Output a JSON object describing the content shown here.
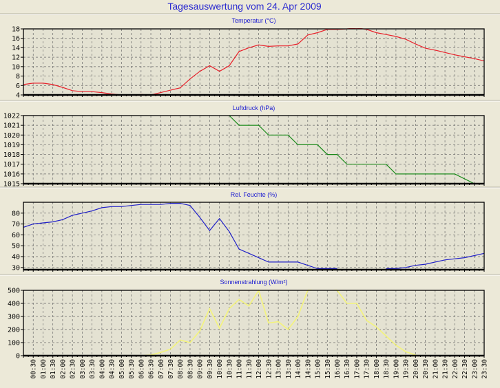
{
  "title": "Tagesauswertung vom 24. Apr 2009",
  "x_labels": [
    "00:30",
    "01:00",
    "01:30",
    "02:00",
    "02:30",
    "03:00",
    "03:30",
    "04:00",
    "04:30",
    "05:00",
    "05:30",
    "06:00",
    "06:30",
    "07:00",
    "07:30",
    "08:00",
    "08:30",
    "09:00",
    "09:30",
    "10:00",
    "10:30",
    "11:00",
    "11:30",
    "12:00",
    "12:30",
    "13:00",
    "13:30",
    "14:00",
    "14:30",
    "15:00",
    "15:30",
    "16:00",
    "16:30",
    "17:00",
    "17:30",
    "18:00",
    "18:30",
    "19:00",
    "19:30",
    "20:00",
    "20:30",
    "21:00",
    "21:30",
    "22:00",
    "22:30",
    "23:00",
    "23:30"
  ],
  "chart_data": [
    {
      "type": "line",
      "title": "Temperatur (°C)",
      "color": "#e8202a",
      "ylim": [
        4,
        18
      ],
      "yticks": [
        4,
        6,
        8,
        10,
        12,
        14,
        16,
        18
      ],
      "x_start": "00:00",
      "x_step_minutes": 30,
      "values": [
        6.2,
        6.5,
        6.5,
        6.2,
        5.6,
        4.9,
        4.7,
        4.7,
        4.5,
        4.2,
        4.0,
        3.9,
        4.1,
        4.0,
        4.5,
        5.0,
        5.5,
        7.4,
        9.0,
        10.2,
        9.0,
        10.2,
        13.2,
        14.0,
        14.6,
        14.3,
        14.4,
        14.4,
        14.8,
        16.7,
        17.2,
        17.9,
        17.9,
        18.0,
        18.2,
        17.9,
        17.2,
        16.8,
        16.4,
        15.8,
        14.8,
        13.9,
        13.5,
        13.0,
        12.5,
        12.1,
        11.7,
        11.2
      ]
    },
    {
      "type": "line",
      "title": "Luftdruck (hPa)",
      "color": "#1a8a1a",
      "ylim": [
        1015,
        1022
      ],
      "yticks": [
        1015,
        1016,
        1017,
        1018,
        1019,
        1020,
        1021,
        1022
      ],
      "x_start": "00:00",
      "x_step_minutes": 30,
      "values": [
        null,
        null,
        null,
        null,
        null,
        null,
        null,
        null,
        null,
        null,
        null,
        null,
        null,
        null,
        null,
        null,
        null,
        null,
        null,
        null,
        null,
        1022,
        1021,
        1021,
        1021,
        1020,
        1020,
        1020,
        1019,
        1019,
        1019,
        1018,
        1018,
        1017,
        1017,
        1017,
        1017,
        1017,
        1016,
        1016,
        1016,
        1016,
        1016,
        1016,
        1016,
        1015.5,
        1015,
        1015
      ]
    },
    {
      "type": "line",
      "title": "Rel. Feuchte (%)",
      "color": "#2020c8",
      "ylim": [
        28,
        90
      ],
      "yticks": [
        30,
        40,
        50,
        60,
        70,
        80
      ],
      "x_start": "00:00",
      "x_step_minutes": 30,
      "values": [
        67,
        70,
        71,
        72,
        74,
        78,
        80,
        82,
        85,
        86,
        86,
        87,
        88,
        88,
        88,
        89,
        89,
        87,
        76,
        64,
        75,
        63,
        47,
        43,
        39,
        35,
        35,
        35,
        35,
        32,
        29,
        29,
        29,
        null,
        null,
        null,
        null,
        29,
        29,
        30,
        32,
        33,
        35,
        37,
        38,
        39,
        41,
        43
      ]
    },
    {
      "type": "line",
      "title": "Sonnenstrahlung (W/m²)",
      "color": "#f4f47a",
      "ylim": [
        0,
        500
      ],
      "yticks": [
        0,
        100,
        200,
        300,
        400,
        500
      ],
      "x_start": "00:00",
      "x_step_minutes": 30,
      "values": [
        null,
        null,
        null,
        null,
        null,
        null,
        null,
        null,
        null,
        null,
        null,
        null,
        0,
        5,
        25,
        50,
        120,
        100,
        190,
        360,
        210,
        360,
        430,
        380,
        500,
        250,
        260,
        200,
        300,
        500,
        520,
        530,
        500,
        400,
        400,
        270,
        220,
        150,
        80,
        30,
        5,
        null,
        null,
        null,
        null,
        null,
        null,
        null
      ]
    }
  ]
}
